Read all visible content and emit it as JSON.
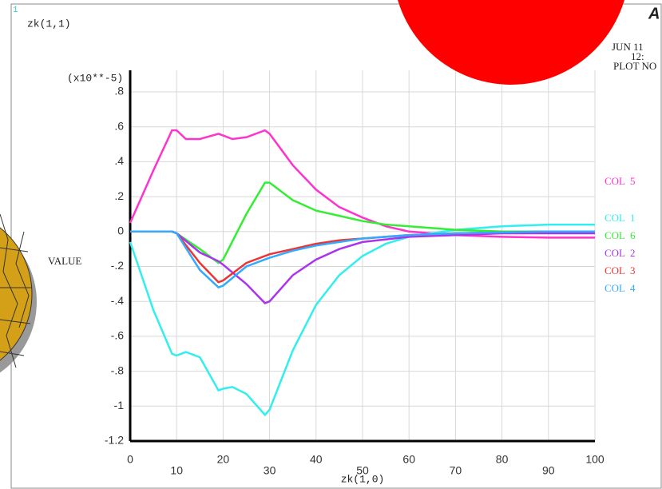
{
  "chart_data": {
    "type": "line",
    "corner_label": "1",
    "title": "zk(1,1)",
    "y_multiplier": "(x10**-5)",
    "ylabel": "VALUE",
    "xlabel": "zk(1,0)",
    "date": "JUN 11",
    "time": "12:",
    "plot_no": "PLOT NO",
    "logo": "A",
    "xlim": [
      0,
      100
    ],
    "ylim": [
      -1.2,
      0.8
    ],
    "xticks": [
      0,
      10,
      20,
      30,
      40,
      50,
      60,
      70,
      80,
      90,
      100
    ],
    "yticks": [
      {
        "value": 0.8,
        "label": ".8"
      },
      {
        "value": 0.6,
        "label": ".6"
      },
      {
        "value": 0.4,
        "label": ".4"
      },
      {
        "value": 0.2,
        "label": ".2"
      },
      0,
      {
        "value": -0.2,
        "label": "-.2"
      },
      {
        "value": -0.4,
        "label": "-.4"
      },
      {
        "value": -0.6,
        "label": "-.6"
      },
      {
        "value": -0.8,
        "label": "-.8"
      },
      -1,
      -1.2
    ],
    "grid": true,
    "series": [
      {
        "name": "COL  5",
        "color": "#ff33cc",
        "x": [
          0,
          5,
          9,
          10,
          12,
          15,
          19,
          20,
          22,
          25,
          29,
          30,
          35,
          40,
          45,
          50,
          55,
          60,
          70,
          80,
          90,
          100
        ],
        "values": [
          0.05,
          0.35,
          0.58,
          0.58,
          0.53,
          0.53,
          0.56,
          0.55,
          0.53,
          0.54,
          0.58,
          0.56,
          0.38,
          0.24,
          0.14,
          0.08,
          0.03,
          0.0,
          -0.02,
          -0.03,
          -0.035,
          -0.035
        ]
      },
      {
        "name": "COL  1",
        "color": "#33eeee",
        "x": [
          0,
          5,
          9,
          10,
          12,
          15,
          19,
          20,
          22,
          25,
          29,
          30,
          35,
          40,
          45,
          50,
          55,
          60,
          70,
          80,
          90,
          100
        ],
        "values": [
          -0.06,
          -0.45,
          -0.7,
          -0.71,
          -0.69,
          -0.72,
          -0.91,
          -0.9,
          -0.89,
          -0.93,
          -1.05,
          -1.02,
          -0.68,
          -0.42,
          -0.25,
          -0.14,
          -0.07,
          -0.03,
          0.01,
          0.03,
          0.04,
          0.04
        ]
      },
      {
        "name": "COL  6",
        "color": "#33ee33",
        "x": [
          0,
          5,
          9,
          10,
          15,
          19,
          20,
          25,
          29,
          30,
          35,
          40,
          45,
          50,
          55,
          60,
          70,
          80,
          90,
          100
        ],
        "values": [
          0,
          0,
          0,
          -0.01,
          -0.1,
          -0.18,
          -0.16,
          0.1,
          0.28,
          0.28,
          0.18,
          0.12,
          0.09,
          0.06,
          0.04,
          0.03,
          0.01,
          0.0,
          0.0,
          0.0
        ]
      },
      {
        "name": "COL  2",
        "color": "#aa33ee",
        "x": [
          0,
          9,
          10,
          15,
          19,
          20,
          25,
          29,
          30,
          35,
          40,
          45,
          50,
          60,
          70,
          80,
          90,
          100
        ],
        "values": [
          0,
          0,
          -0.01,
          -0.12,
          -0.17,
          -0.19,
          -0.3,
          -0.41,
          -0.4,
          -0.25,
          -0.16,
          -0.1,
          -0.06,
          -0.03,
          -0.02,
          -0.01,
          -0.01,
          -0.01
        ]
      },
      {
        "name": "COL  3",
        "color": "#ee3333",
        "x": [
          0,
          9,
          10,
          15,
          19,
          20,
          25,
          30,
          35,
          40,
          45,
          50,
          60,
          70,
          80,
          90,
          100
        ],
        "values": [
          0,
          0,
          -0.01,
          -0.18,
          -0.29,
          -0.28,
          -0.18,
          -0.13,
          -0.1,
          -0.07,
          -0.05,
          -0.04,
          -0.02,
          -0.01,
          -0.005,
          0,
          0
        ]
      },
      {
        "name": "COL  4",
        "color": "#33aaff",
        "x": [
          0,
          9,
          10,
          15,
          19,
          20,
          25,
          30,
          35,
          40,
          45,
          50,
          60,
          70,
          80,
          90,
          100
        ],
        "values": [
          0,
          0,
          -0.01,
          -0.22,
          -0.32,
          -0.31,
          -0.2,
          -0.15,
          -0.11,
          -0.08,
          -0.06,
          -0.04,
          -0.02,
          -0.01,
          -0.005,
          0,
          0
        ]
      }
    ]
  }
}
